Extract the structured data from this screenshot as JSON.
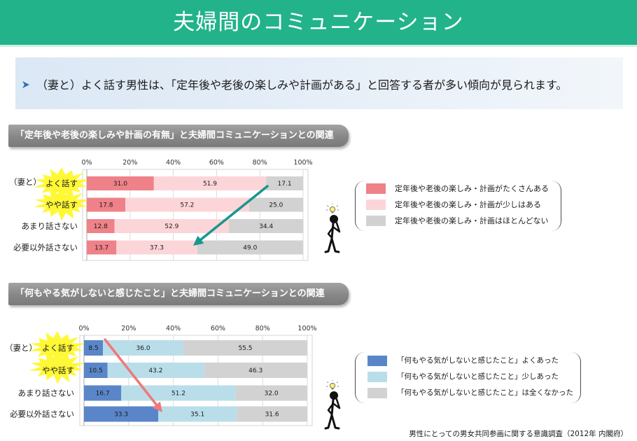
{
  "theme": {
    "header_color": "#22b38b",
    "highlight_color": "#fff836",
    "bullet_color": "#2e6db4"
  },
  "header": {
    "title": "夫婦間のコミュニケーション"
  },
  "summary": {
    "bullet_icon": "arrow-bullet-icon",
    "text": "（妻と）よく話す男性は、「定年後や老後の楽しみや計画がある」と回答する者が多い傾向が見られます。"
  },
  "chart_data": [
    {
      "type": "bar",
      "orientation": "horizontal",
      "stacked": true,
      "title": "「定年後や老後の楽しみや計画の有無」と夫婦間コミュニケーションとの関連",
      "group_label": "（妻と）",
      "categories": [
        "よく話す",
        "やや話す",
        "あまり話さない",
        "必要以外話さない"
      ],
      "highlighted_categories": [
        "よく話す",
        "やや話す"
      ],
      "xlim": [
        0,
        100
      ],
      "xtick_labels": [
        "0%",
        "20%",
        "40%",
        "60%",
        "80%",
        "100%"
      ],
      "grid": true,
      "legend": "right",
      "series": [
        {
          "name": "定年後や老後の楽しみ・計画がたくさんある",
          "color": "#ef8189",
          "values": [
            31.0,
            17.8,
            12.8,
            13.7
          ]
        },
        {
          "name": "定年後や老後の楽しみ・計画が少しはある",
          "color": "#fcd5d9",
          "values": [
            51.9,
            57.2,
            52.9,
            37.3
          ]
        },
        {
          "name": "定年後や老後の楽しみ・計画はほとんどない",
          "color": "#d2d2d2",
          "values": [
            17.1,
            25.0,
            34.4,
            49.0
          ]
        }
      ],
      "trend_arrow": {
        "icon": "trend-arrow-icon",
        "color": "#17978f"
      }
    },
    {
      "type": "bar",
      "orientation": "horizontal",
      "stacked": true,
      "title": "「何もやる気がしないと感じたこと」と夫婦間コミュニケーションとの関連",
      "group_label": "（妻と）",
      "categories": [
        "よく話す",
        "やや話す",
        "あまり話さない",
        "必要以外話さない"
      ],
      "highlighted_categories": [
        "よく話す",
        "やや話す"
      ],
      "xlim": [
        0,
        100
      ],
      "xtick_labels": [
        "0%",
        "20%",
        "40%",
        "60%",
        "80%",
        "100%"
      ],
      "grid": true,
      "legend": "right",
      "series": [
        {
          "name": "「何もやる気がしないと感じたこと」よくあった",
          "color": "#5a86c9",
          "values": [
            8.5,
            10.5,
            16.7,
            33.3
          ]
        },
        {
          "name": "「何もやる気がしないと感じたこと」少しあった",
          "color": "#b9deea",
          "values": [
            36.0,
            43.2,
            51.2,
            35.1
          ]
        },
        {
          "name": "「何もやる気がしないと感じたこと」は全くなかった",
          "color": "#d2d2d2",
          "values": [
            55.5,
            46.3,
            32.0,
            31.6
          ]
        }
      ],
      "trend_arrow": {
        "icon": "trend-arrow-icon",
        "color": "#f07878"
      }
    }
  ],
  "figure_icons": [
    "thinking-person-icon",
    "thinking-person-icon"
  ],
  "source": "男性にとっての男女共同参画に関する意識調査（2012年 内閣府）"
}
